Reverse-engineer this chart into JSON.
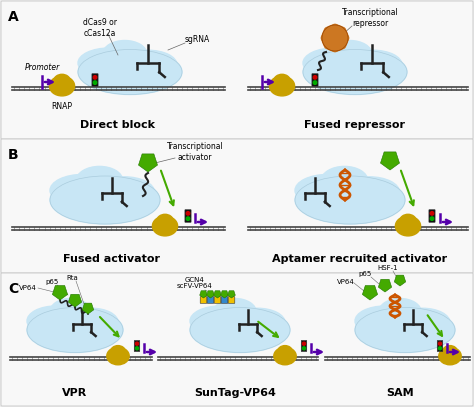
{
  "background_color": "#efefef",
  "panel_bg": "#f0f0f0",
  "label_direct_block": "Direct block",
  "label_fused_repressor": "Fused repressor",
  "label_fused_activator": "Fused activator",
  "label_aptamer": "Aptamer recruited activator",
  "label_VPR": "VPR",
  "label_SunTag": "SunTag-VP64",
  "label_SAM": "SAM",
  "annotation_dcas9": "dCas9 or\ncCas12a",
  "annotation_sgRNA": "sgRNA",
  "annotation_promoter": "Promoter",
  "annotation_RNAP": "RNAP",
  "annotation_trans_repressor": "Transcriptional\nrepressor",
  "annotation_trans_activator": "Transcriptional\nactivator",
  "annotation_VP64": "VP64",
  "annotation_p65": "p65",
  "annotation_Rta": "Rta",
  "annotation_GCN4": "GCN4\nscFV-VP64",
  "annotation_VP64_2": "VP64",
  "annotation_p65_2": "p65",
  "annotation_HSF1": "HSF-1",
  "cloud_color": "#c8e6f5",
  "dna_color": "#444444",
  "rnap_color": "#c8a000",
  "traffic_red": "#cc0000",
  "traffic_green": "#00aa00",
  "traffic_body": "#222222",
  "arrow_color": "#5500aa",
  "activator_color": "#44aa00",
  "repressor_color": "#cc7722",
  "aptamer_color": "#cc5500",
  "font_size_label": 8,
  "font_size_panel": 10,
  "font_size_annot": 5.5
}
